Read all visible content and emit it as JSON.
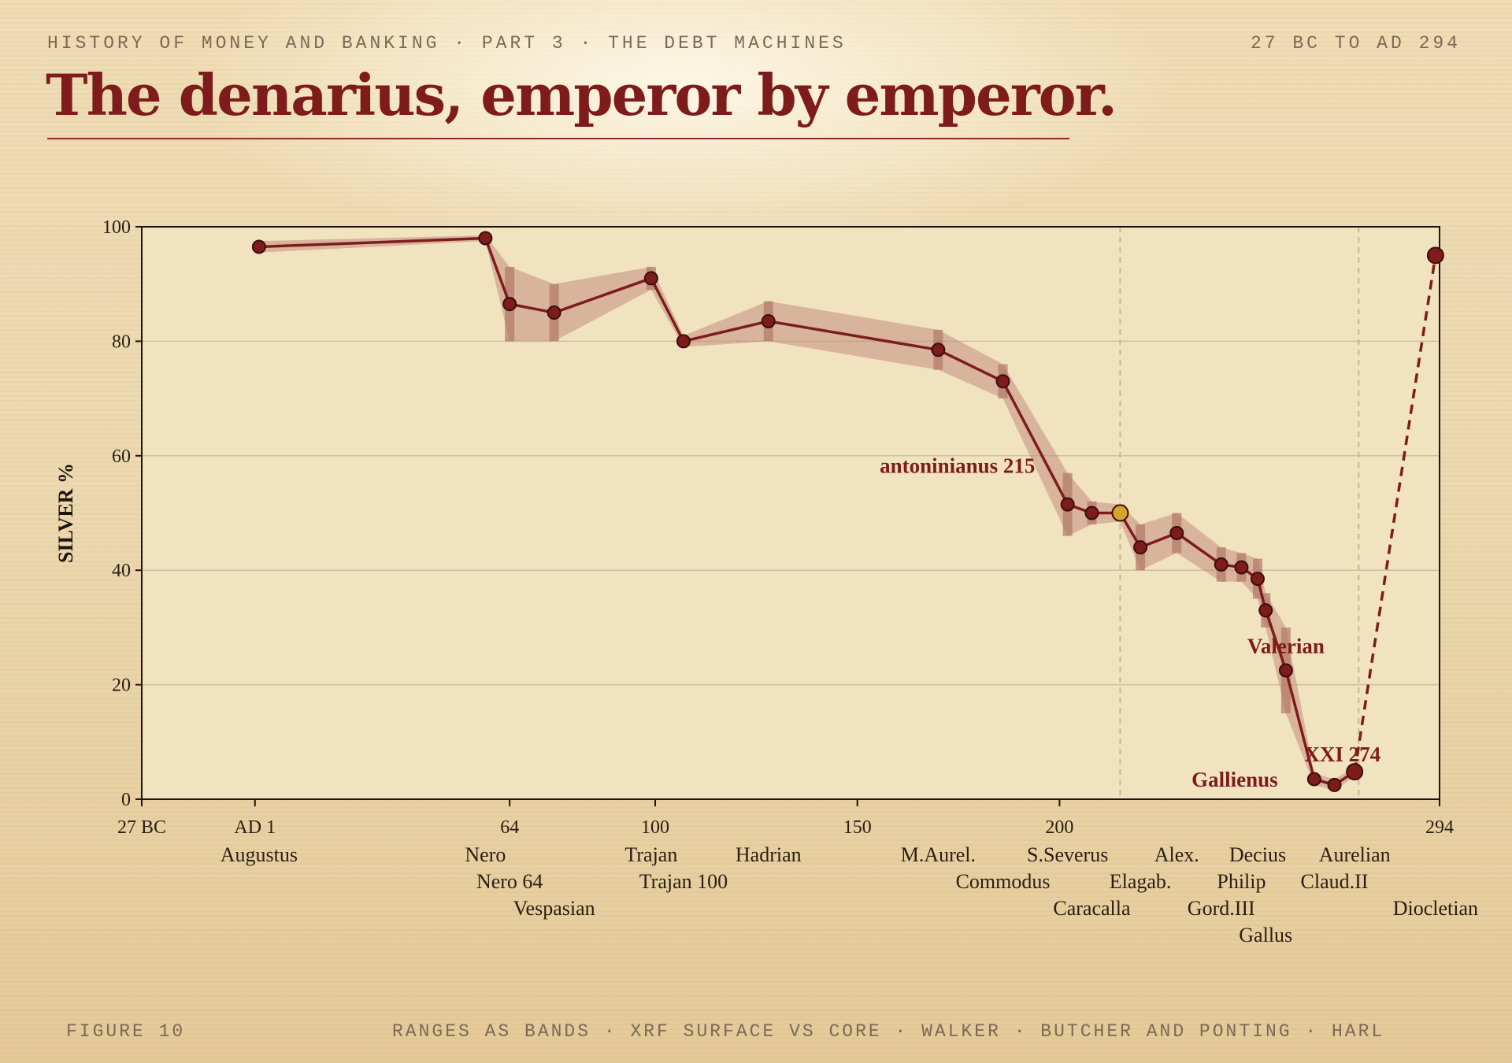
{
  "header": {
    "kicker": "HISTORY OF MONEY AND BANKING · PART 3 · THE DEBT MACHINES",
    "range": "27 BC TO AD 294",
    "title": "The denarius, emperor by emperor."
  },
  "footer": {
    "figure": "FIGURE 10",
    "sources": "RANGES AS BANDS · XRF SURFACE VS CORE · WALKER · BUTCHER AND PONTING · HARL"
  },
  "colors": {
    "line": "#7e1c1c",
    "band": "#c58e80",
    "marker": "#7e1c1c",
    "highlight": "#d4a52a",
    "plot_bg": "#f1e3bf",
    "grid": "#cdbf9f"
  },
  "chart_data": {
    "type": "line",
    "ylabel": "SILVER %",
    "xlim": [
      -27,
      294
    ],
    "ylim": [
      0,
      100
    ],
    "y_ticks": [
      0,
      20,
      40,
      60,
      80,
      100
    ],
    "x_ticks": [
      {
        "value": -27,
        "label": "27 BC"
      },
      {
        "value": 1,
        "label": "AD 1"
      },
      {
        "value": 64,
        "label": "64"
      },
      {
        "value": 100,
        "label": "100"
      },
      {
        "value": 150,
        "label": "150"
      },
      {
        "value": 200,
        "label": "200"
      },
      {
        "value": 294,
        "label": "294"
      }
    ],
    "grid": "horizontal",
    "vlines": [
      215,
      274
    ],
    "series": [
      {
        "points": [
          {
            "x": 2,
            "y": 96.5,
            "lo": 95.5,
            "hi": 97.5,
            "label": "Augustus",
            "row": 0
          },
          {
            "x": 58,
            "y": 98,
            "lo": 97.5,
            "hi": 98.5,
            "label": "Nero",
            "row": 0
          },
          {
            "x": 64,
            "y": 86.5,
            "lo": 80,
            "hi": 93,
            "label": "Nero 64",
            "row": 1
          },
          {
            "x": 75,
            "y": 85,
            "lo": 80,
            "hi": 90,
            "label": "Vespasian",
            "row": 2
          },
          {
            "x": 99,
            "y": 91,
            "lo": 89,
            "hi": 93,
            "label": "Trajan",
            "row": 0
          },
          {
            "x": 107,
            "y": 80,
            "lo": 79,
            "hi": 81,
            "label": "Trajan 100",
            "row": 1
          },
          {
            "x": 128,
            "y": 83.5,
            "lo": 80,
            "hi": 87,
            "label": "Hadrian",
            "row": 0
          },
          {
            "x": 170,
            "y": 78.5,
            "lo": 75,
            "hi": 82,
            "label": "M.Aurel.",
            "row": 0
          },
          {
            "x": 186,
            "y": 73,
            "lo": 70,
            "hi": 76,
            "label": "Commodus",
            "row": 1
          },
          {
            "x": 202,
            "y": 51.5,
            "lo": 46,
            "hi": 57,
            "label": "S.Severus",
            "row": 0
          },
          {
            "x": 208,
            "y": 50,
            "lo": 48,
            "hi": 52,
            "label": "Caracalla",
            "row": 2
          },
          {
            "x": 215,
            "y": 50,
            "lo": 48.5,
            "hi": 51.5,
            "highlight": true
          },
          {
            "x": 220,
            "y": 44,
            "lo": 40,
            "hi": 48,
            "label": "Elagab.",
            "row": 1
          },
          {
            "x": 229,
            "y": 46.5,
            "lo": 43,
            "hi": 50,
            "label": "Alex.",
            "row": 0
          },
          {
            "x": 240,
            "y": 41,
            "lo": 38,
            "hi": 44,
            "label": "Gord.III",
            "row": 2
          },
          {
            "x": 245,
            "y": 40.5,
            "lo": 38,
            "hi": 43,
            "label": "Philip",
            "row": 1
          },
          {
            "x": 249,
            "y": 38.5,
            "lo": 35,
            "hi": 42,
            "label": "Decius",
            "row": 0
          },
          {
            "x": 251,
            "y": 33,
            "lo": 30,
            "hi": 36,
            "label": "Gallus",
            "row": 3
          },
          {
            "x": 256,
            "y": 22.5,
            "lo": 15,
            "hi": 30,
            "label": "",
            "row": 0
          },
          {
            "x": 263,
            "y": 3.5,
            "lo": 2.5,
            "hi": 4.5,
            "label": "",
            "row": 0
          },
          {
            "x": 268,
            "y": 2.5,
            "lo": 1.5,
            "hi": 3.5,
            "label": "Claud.II",
            "row": 1
          },
          {
            "x": 273,
            "y": 4.8,
            "lo": 4,
            "hi": 5.6,
            "label": "Aurelian",
            "row": 0
          },
          {
            "x": 293,
            "y": 95,
            "lo": 94,
            "hi": 96,
            "label": "Diocletian",
            "row": 2,
            "dashed": true
          }
        ]
      }
    ],
    "annotations": [
      {
        "text": "antoninianus 215",
        "x": 215,
        "y": 57
      },
      {
        "text": "Valerian",
        "x": 256,
        "y": 25.5
      },
      {
        "text": "XXI 274",
        "x": 270,
        "y": 6.6
      },
      {
        "text": "Gallienus",
        "x": 254,
        "y": 2.2
      }
    ]
  }
}
